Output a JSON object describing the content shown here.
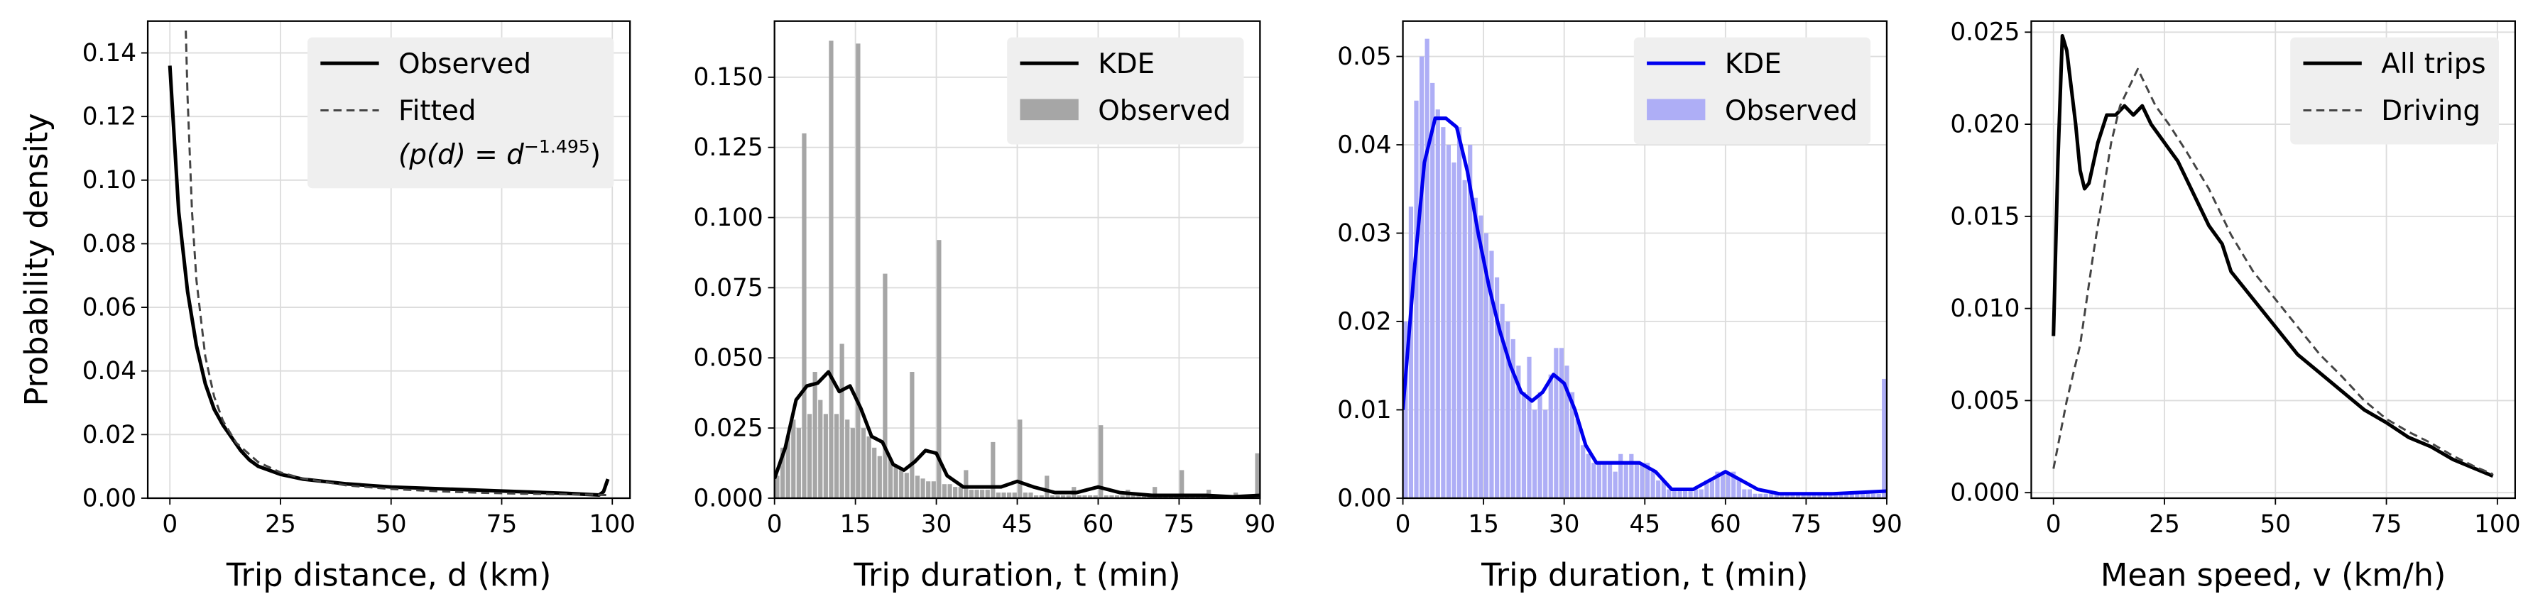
{
  "chart_data": [
    {
      "type": "line",
      "xlabel": "Trip distance, d (km)",
      "ylabel": "Probability density",
      "xlim": [
        -5,
        104
      ],
      "ylim": [
        0,
        0.15
      ],
      "xticks": [
        0,
        25,
        50,
        75,
        100
      ],
      "yticks": [
        {
          "value": 0,
          "label": "0.00"
        },
        0.02,
        0.04,
        0.06,
        0.08,
        {
          "value": 0.1,
          "label": "0.10"
        },
        0.12,
        0.14
      ],
      "grid": true,
      "legend": "upper right",
      "series": [
        {
          "name": "Observed",
          "color": "#000000",
          "linestyle": "solid",
          "x": [
            0,
            2,
            4,
            6,
            8,
            10,
            12,
            14,
            16,
            18,
            20,
            25,
            30,
            40,
            50,
            60,
            70,
            80,
            90,
            97,
            98,
            99
          ],
          "values": [
            0.136,
            0.09,
            0.065,
            0.048,
            0.036,
            0.028,
            0.023,
            0.019,
            0.015,
            0.012,
            0.01,
            0.0075,
            0.006,
            0.0045,
            0.0035,
            0.003,
            0.0025,
            0.002,
            0.0015,
            0.001,
            0.002,
            0.006
          ]
        },
        {
          "name": "Fitted",
          "formula": [
            "(p(d) = d",
            "−1.495",
            ")"
          ],
          "color": "#444444",
          "linestyle": "dashed",
          "x": [
            3.6,
            4,
            5,
            6,
            8,
            10,
            12,
            15,
            20,
            25,
            30,
            40,
            50,
            60,
            70,
            80,
            90,
            99
          ],
          "values": [
            0.147,
            0.126,
            0.0902,
            0.0686,
            0.0446,
            0.032,
            0.0243,
            0.0174,
            0.0113,
            0.0081,
            0.0062,
            0.004,
            0.0029,
            0.0022,
            0.0017,
            0.0014,
            0.0012,
            0.001
          ]
        }
      ]
    },
    {
      "type": "histogram",
      "xlabel": "Trip duration, t (min)",
      "xlim": [
        0,
        90
      ],
      "ylim": [
        0,
        0.17
      ],
      "xticks": [
        0,
        15,
        30,
        45,
        60,
        75,
        90
      ],
      "yticks": [
        {
          "value": 0,
          "label": "0.000"
        },
        0.025,
        {
          "value": 0.05,
          "label": "0.050"
        },
        0.075,
        {
          "value": 0.1,
          "label": "0.100"
        },
        0.125,
        {
          "value": 0.15,
          "label": "0.150"
        }
      ],
      "grid": true,
      "legend": "upper right",
      "hist_name": "Observed",
      "hist_color": "#a6a6a6",
      "bins": [
        0,
        1,
        2,
        3,
        4,
        5,
        6,
        7,
        8,
        9,
        10,
        11,
        12,
        13,
        14,
        15,
        16,
        17,
        18,
        19,
        20,
        21,
        22,
        23,
        24,
        25,
        26,
        27,
        28,
        29,
        30,
        31,
        32,
        33,
        34,
        35,
        36,
        37,
        38,
        39,
        40,
        41,
        42,
        43,
        44,
        45,
        46,
        47,
        48,
        49,
        50,
        51,
        52,
        53,
        54,
        55,
        56,
        57,
        58,
        59,
        60,
        61,
        62,
        63,
        64,
        65,
        66,
        67,
        68,
        69,
        70,
        71,
        72,
        73,
        74,
        75,
        76,
        77,
        78,
        79,
        80,
        81,
        82,
        83,
        84,
        85,
        86,
        87,
        88,
        89,
        90
      ],
      "counts": [
        0.008,
        0.018,
        0.022,
        0.028,
        0.025,
        0.13,
        0.03,
        0.045,
        0.035,
        0.03,
        0.163,
        0.03,
        0.055,
        0.028,
        0.025,
        0.162,
        0.025,
        0.022,
        0.018,
        0.015,
        0.08,
        0.014,
        0.012,
        0.01,
        0.009,
        0.045,
        0.008,
        0.007,
        0.006,
        0.006,
        0.092,
        0.005,
        0.005,
        0.004,
        0.004,
        0.01,
        0.003,
        0.003,
        0.003,
        0.003,
        0.02,
        0.002,
        0.002,
        0.002,
        0.002,
        0.028,
        0.002,
        0.002,
        0.001,
        0.001,
        0.008,
        0.001,
        0.001,
        0.001,
        0.001,
        0.004,
        0.001,
        0.001,
        0.001,
        0.001,
        0.026,
        0.001,
        0.001,
        0.001,
        0.001,
        0.003,
        0.001,
        0.001,
        0.001,
        0.001,
        0.004,
        0.001,
        0.001,
        0.001,
        0.001,
        0.01,
        0.001,
        0.001,
        0.001,
        0.001,
        0.003,
        0.001,
        0.001,
        0.001,
        0.001,
        0.002,
        0.001,
        0.001,
        0.001,
        0.016
      ],
      "series": [
        {
          "name": "KDE",
          "color": "#000000",
          "linestyle": "solid",
          "x": [
            0,
            2,
            4,
            6,
            8,
            10,
            12,
            14,
            16,
            18,
            20,
            22,
            24,
            26,
            28,
            30,
            32,
            35,
            38,
            42,
            45,
            48,
            52,
            56,
            60,
            64,
            70,
            80,
            85,
            90
          ],
          "values": [
            0.007,
            0.018,
            0.035,
            0.04,
            0.041,
            0.045,
            0.038,
            0.04,
            0.032,
            0.022,
            0.02,
            0.012,
            0.01,
            0.013,
            0.017,
            0.016,
            0.008,
            0.004,
            0.004,
            0.004,
            0.006,
            0.004,
            0.002,
            0.002,
            0.004,
            0.002,
            0.001,
            0.001,
            0.0005,
            0.001
          ]
        }
      ]
    },
    {
      "type": "histogram",
      "xlabel": "Trip duration, t (min)",
      "xlim": [
        0,
        90
      ],
      "ylim": [
        0,
        0.054
      ],
      "xticks": [
        0,
        15,
        30,
        45,
        60,
        75,
        90
      ],
      "yticks": [
        {
          "value": 0,
          "label": "0.00"
        },
        0.01,
        0.02,
        0.03,
        0.04,
        0.05
      ],
      "grid": true,
      "legend": "upper right",
      "hist_name": "Observed",
      "hist_color": "#aeaef6",
      "bins": [
        0,
        1,
        2,
        3,
        4,
        5,
        6,
        7,
        8,
        9,
        10,
        11,
        12,
        13,
        14,
        15,
        16,
        17,
        18,
        19,
        20,
        21,
        22,
        23,
        24,
        25,
        26,
        27,
        28,
        29,
        30,
        31,
        32,
        33,
        34,
        35,
        36,
        37,
        38,
        39,
        40,
        41,
        42,
        43,
        44,
        45,
        46,
        47,
        48,
        49,
        50,
        51,
        52,
        53,
        54,
        55,
        56,
        57,
        58,
        59,
        60,
        61,
        62,
        63,
        64,
        65,
        66,
        67,
        68,
        69,
        70,
        71,
        72,
        73,
        74,
        75,
        76,
        77,
        78,
        79,
        80,
        81,
        82,
        83,
        84,
        85,
        86,
        87,
        88,
        89,
        90
      ],
      "counts": [
        0.02,
        0.033,
        0.045,
        0.05,
        0.052,
        0.047,
        0.044,
        0.042,
        0.04,
        0.038,
        0.042,
        0.036,
        0.04,
        0.034,
        0.032,
        0.03,
        0.028,
        0.025,
        0.022,
        0.02,
        0.018,
        0.015,
        0.012,
        0.016,
        0.01,
        0.012,
        0.01,
        0.014,
        0.017,
        0.017,
        0.015,
        0.012,
        0.009,
        0.006,
        0.005,
        0.004,
        0.004,
        0.004,
        0.004,
        0.003,
        0.005,
        0.004,
        0.005,
        0.004,
        0.004,
        0.004,
        0.003,
        0.002,
        0.002,
        0.001,
        0.001,
        0.001,
        0.001,
        0.001,
        0.001,
        0.001,
        0.002,
        0.002,
        0.003,
        0.003,
        0.003,
        0.003,
        0.002,
        0.001,
        0.001,
        0.0005,
        0.0005,
        0.0005,
        0.0005,
        0.0005,
        0.0005,
        0.0005,
        0.0005,
        0.0005,
        0.0005,
        0.0005,
        0.0005,
        0.0005,
        0.0005,
        0.0005,
        0.0005,
        0.0005,
        0.0005,
        0.0005,
        0.0005,
        0.0005,
        0.0005,
        0.0005,
        0.0005,
        0.0135
      ],
      "series": [
        {
          "name": "KDE",
          "color": "#0000ee",
          "linestyle": "solid",
          "x": [
            0,
            2,
            4,
            6,
            8,
            10,
            12,
            14,
            16,
            18,
            20,
            22,
            24,
            26,
            28,
            30,
            32,
            34,
            36,
            40,
            44,
            47,
            50,
            54,
            57,
            60,
            63,
            66,
            70,
            80,
            90
          ],
          "values": [
            0.01,
            0.025,
            0.038,
            0.043,
            0.043,
            0.042,
            0.037,
            0.03,
            0.024,
            0.019,
            0.015,
            0.012,
            0.011,
            0.012,
            0.014,
            0.013,
            0.01,
            0.006,
            0.004,
            0.004,
            0.004,
            0.003,
            0.001,
            0.001,
            0.002,
            0.003,
            0.002,
            0.001,
            0.0005,
            0.0005,
            0.0008
          ]
        }
      ]
    },
    {
      "type": "line",
      "xlabel": "Mean speed, v (km/h)",
      "xlim": [
        -5,
        104
      ],
      "ylim": [
        -0.0003,
        0.0256
      ],
      "xticks": [
        0,
        25,
        50,
        75,
        100
      ],
      "yticks": [
        {
          "value": 0,
          "label": "0.000"
        },
        0.005,
        {
          "value": 0.01,
          "label": "0.010"
        },
        0.015,
        {
          "value": 0.02,
          "label": "0.020"
        },
        0.025
      ],
      "grid": true,
      "legend": "upper right",
      "series": [
        {
          "name": "All trips",
          "color": "#000000",
          "linestyle": "solid",
          "x": [
            0,
            1,
            2,
            3,
            4,
            5,
            6,
            7,
            8,
            10,
            12,
            14,
            16,
            18,
            20,
            22,
            25,
            28,
            30,
            33,
            35,
            38,
            40,
            45,
            50,
            55,
            60,
            65,
            70,
            75,
            80,
            85,
            90,
            95,
            99
          ],
          "values": [
            0.0085,
            0.018,
            0.0248,
            0.024,
            0.022,
            0.02,
            0.0175,
            0.0165,
            0.0168,
            0.019,
            0.0205,
            0.0205,
            0.021,
            0.0205,
            0.021,
            0.02,
            0.019,
            0.018,
            0.017,
            0.0155,
            0.0145,
            0.0135,
            0.012,
            0.0105,
            0.009,
            0.0075,
            0.0065,
            0.0055,
            0.0045,
            0.0038,
            0.003,
            0.0025,
            0.0018,
            0.0013,
            0.0009
          ]
        },
        {
          "name": "Driving",
          "color": "#444444",
          "linestyle": "dashed",
          "x": [
            0,
            3,
            6,
            9,
            11,
            13,
            15,
            17,
            19,
            21,
            23,
            26,
            30,
            35,
            40,
            45,
            50,
            55,
            60,
            65,
            70,
            75,
            80,
            85,
            90,
            95,
            99
          ],
          "values": [
            0.0013,
            0.005,
            0.008,
            0.013,
            0.016,
            0.019,
            0.021,
            0.022,
            0.023,
            0.022,
            0.021,
            0.02,
            0.0185,
            0.0165,
            0.014,
            0.012,
            0.0105,
            0.009,
            0.0075,
            0.0063,
            0.005,
            0.004,
            0.0033,
            0.0027,
            0.002,
            0.0014,
            0.001
          ]
        }
      ]
    }
  ]
}
